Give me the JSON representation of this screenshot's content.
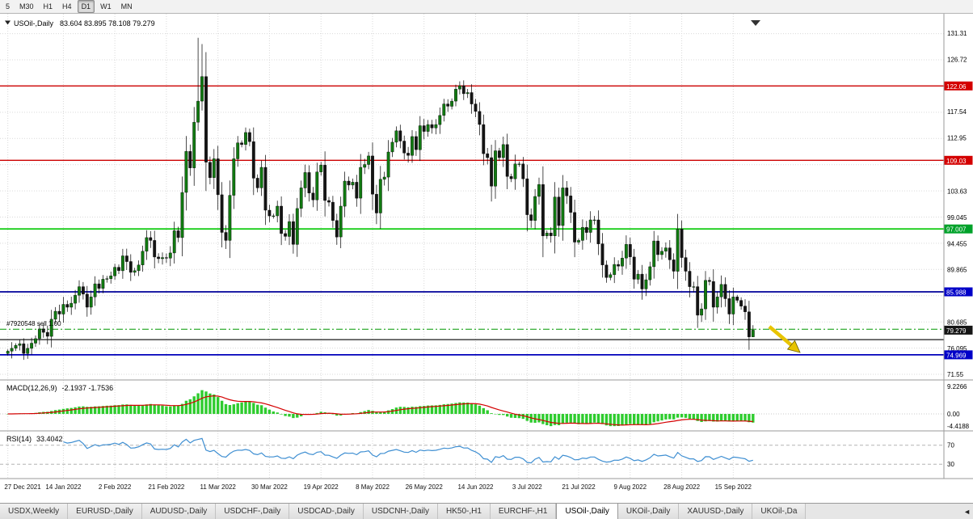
{
  "toolbar": {
    "timeframes": [
      {
        "label": "5",
        "active": false
      },
      {
        "label": "M30",
        "active": false
      },
      {
        "label": "H1",
        "active": false
      },
      {
        "label": "H4",
        "active": false
      },
      {
        "label": "D1",
        "active": true
      },
      {
        "label": "W1",
        "active": false
      },
      {
        "label": "MN",
        "active": false
      }
    ]
  },
  "chart_data": {
    "type": "candlestick",
    "symbol": "USOil-",
    "period": "Daily",
    "title": "USOil-,Daily",
    "ohlc": "83.604 83.895 78.108 79.279",
    "position_label": "#7920548 sell 1.00",
    "axis": {
      "max": 131.31,
      "min": 71.55,
      "grid_step": 4.59,
      "labels": [
        {
          "price": 131.31,
          "text": "131.31"
        },
        {
          "price": 126.72,
          "text": "126.72"
        },
        {
          "price": 117.54,
          "text": "117.54"
        },
        {
          "price": 112.95,
          "text": "112.95"
        },
        {
          "price": 103.63,
          "text": "103.63"
        },
        {
          "price": 99.045,
          "text": "99.045"
        },
        {
          "price": 94.455,
          "text": "94.455"
        },
        {
          "price": 89.865,
          "text": "89.865"
        },
        {
          "price": 80.685,
          "text": "80.685"
        },
        {
          "price": 76.095,
          "text": "76.095"
        },
        {
          "price": 71.55,
          "text": "71.55"
        }
      ],
      "badges": [
        {
          "price": 122.06,
          "text": "122.06",
          "color": "#d40000"
        },
        {
          "price": 109.03,
          "text": "109.03",
          "color": "#d40000"
        },
        {
          "price": 97.007,
          "text": "97.007",
          "color": "#00a22a"
        },
        {
          "price": 85.988,
          "text": "85.988",
          "color": "#0000c8"
        },
        {
          "price": 79.279,
          "text": "79.279",
          "color": "#151515"
        },
        {
          "price": 74.969,
          "text": "74.969",
          "color": "#0000c8"
        }
      ]
    },
    "hlines": [
      {
        "price": 122.06,
        "color": "#cc0000",
        "width": 1.3
      },
      {
        "price": 109.03,
        "color": "#cc0000",
        "width": 1.3
      },
      {
        "price": 97.007,
        "color": "#00c800",
        "width": 1.6
      },
      {
        "price": 85.988,
        "color": "#000099",
        "width": 1.8
      },
      {
        "price": 79.45,
        "color": "#009900",
        "width": 1,
        "dash": "8 3 2 3"
      },
      {
        "price": 77.63,
        "color": "#1a1a1a",
        "width": 1.2
      },
      {
        "price": 74.969,
        "color": "#0000bb",
        "width": 1.8
      }
    ],
    "x_ticks": [
      {
        "bar": 0,
        "text": "27 Dec 2021"
      },
      {
        "bar": 14,
        "text": "14 Jan 2022"
      },
      {
        "bar": 27,
        "text": "2 Feb 2022"
      },
      {
        "bar": 40,
        "text": "21 Feb 2022"
      },
      {
        "bar": 53,
        "text": "11 Mar 2022"
      },
      {
        "bar": 66,
        "text": "30 Mar 2022"
      },
      {
        "bar": 79,
        "text": "19 Apr 2022"
      },
      {
        "bar": 92,
        "text": "8 May 2022"
      },
      {
        "bar": 105,
        "text": "26 May 2022"
      },
      {
        "bar": 118,
        "text": "14 Jun 2022"
      },
      {
        "bar": 131,
        "text": "3 Jul 2022"
      },
      {
        "bar": 144,
        "text": "21 Jul 2022"
      },
      {
        "bar": 157,
        "text": "9 Aug 2022"
      },
      {
        "bar": 170,
        "text": "28 Aug 2022"
      },
      {
        "bar": 183,
        "text": "15 Sep 2022"
      }
    ],
    "first_open": 75.2,
    "closes": [
      75.6,
      76.1,
      76.6,
      76.9,
      75.2,
      76.1,
      77.0,
      77.8,
      79.5,
      78.9,
      78.2,
      81.2,
      82.6,
      82.1,
      83.8,
      83.3,
      84.0,
      85.4,
      86.9,
      85.6,
      83.3,
      85.1,
      87.4,
      86.6,
      88.2,
      88.3,
      88.8,
      90.3,
      89.7,
      92.3,
      91.3,
      89.4,
      89.7,
      90.7,
      93.1,
      95.5,
      95.0,
      92.1,
      91.8,
      92.0,
      91.9,
      92.8,
      96.7,
      95.5,
      103.4,
      110.6,
      107.7,
      115.7,
      119.4,
      123.7,
      108.7,
      106.0,
      109.3,
      103.0,
      96.4,
      95.0,
      102.9,
      109.3,
      112.1,
      111.8,
      113.9,
      112.3,
      105.9,
      104.2,
      107.8,
      100.3,
      99.3,
      99.3,
      101.0,
      96.2,
      95.7,
      98.3,
      94.3,
      100.6,
      104.2,
      106.9,
      103.3,
      102.1,
      107.0,
      108.2,
      102.0,
      101.7,
      98.5,
      95.6,
      101.0,
      105.4,
      104.7,
      105.2,
      102.4,
      107.8,
      108.3,
      109.8,
      103.1,
      99.8,
      105.7,
      106.1,
      110.5,
      112.2,
      114.2,
      112.4,
      110.3,
      109.9,
      113.2,
      110.9,
      115.1,
      114.1,
      115.3,
      114.7,
      115.3,
      116.9,
      118.9,
      118.5,
      119.4,
      121.5,
      122.1,
      120.7,
      120.9,
      118.9,
      117.6,
      115.3,
      110.2,
      109.5,
      104.5,
      110.7,
      109.5,
      111.8,
      106.2,
      105.8,
      108.4,
      108.4,
      105.8,
      99.5,
      98.5,
      102.7,
      104.8,
      95.8,
      96.3,
      95.8,
      102.6,
      97.6,
      104.2,
      102.8,
      99.9,
      94.7,
      95.0,
      97.3,
      96.4,
      98.6,
      98.6,
      94.4,
      90.7,
      88.5,
      89.0,
      90.8,
      90.5,
      91.9,
      94.3,
      92.1,
      88.2,
      89.1,
      86.5,
      88.1,
      90.4,
      94.9,
      92.5,
      93.1,
      93.7,
      91.6,
      89.6,
      97.0,
      92.0,
      89.6,
      86.9,
      86.9,
      81.9,
      83.0,
      88.0,
      87.8,
      83.3,
      85.1,
      87.3,
      84.8,
      82.1,
      85.1,
      84.5,
      83.5,
      82.5,
      78.1,
      79.279
    ],
    "wick_overrides": {
      "48": {
        "h": 130.5
      },
      "49": {
        "h": 129.4
      },
      "188": {
        "l": 78.108
      }
    },
    "colors": {
      "up": "#117a11",
      "down": "#141414",
      "wick": "#000000"
    },
    "arrow": {
      "x1": 952,
      "y1": 387,
      "x2": 990,
      "y2": 419,
      "color": "#e8c400"
    },
    "indicators": {
      "macd": {
        "label": "MACD(12,26,9)",
        "values": "-2.1937 -1.7536",
        "fast": 12,
        "slow": 26,
        "signal": 9,
        "scale": {
          "top": "9.2266",
          "zero": "0.00",
          "bottom": "-4.4188"
        },
        "hist_color": "#2ecc2e",
        "signal_color": "#d40000"
      },
      "rsi": {
        "label": "RSI(14)",
        "value": "33.4042",
        "period": 14,
        "levels": [
          70,
          30
        ],
        "line_color": "#3f8fd2"
      }
    }
  },
  "tabbar": {
    "scroll_icon": "◄",
    "tabs": [
      {
        "label": "USDX,Weekly",
        "active": false
      },
      {
        "label": "EURUSD-,Daily",
        "active": false
      },
      {
        "label": "AUDUSD-,Daily",
        "active": false
      },
      {
        "label": "USDCHF-,Daily",
        "active": false
      },
      {
        "label": "USDCAD-,Daily",
        "active": false
      },
      {
        "label": "USDCNH-,Daily",
        "active": false
      },
      {
        "label": "HK50-,H1",
        "active": false
      },
      {
        "label": "EURCHF-,H1",
        "active": false
      },
      {
        "label": "USOil-,Daily",
        "active": true
      },
      {
        "label": "UKOil-,Daily",
        "active": false
      },
      {
        "label": "XAUUSD-,Daily",
        "active": false
      },
      {
        "label": "UKOil-,Da",
        "active": false
      }
    ]
  }
}
